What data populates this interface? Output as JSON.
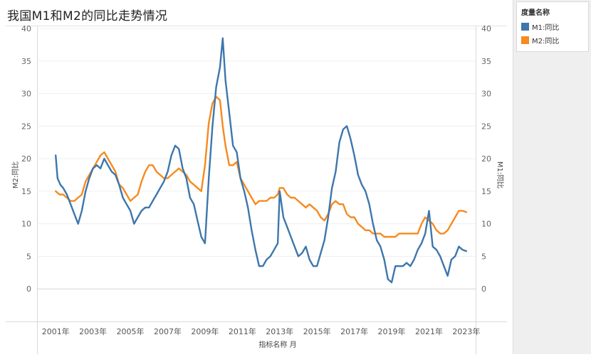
{
  "title": "我国M1和M2的同比走势情况",
  "legend": {
    "title": "度量名称",
    "items": [
      {
        "label": "M1:同比",
        "color": "#3d76ad"
      },
      {
        "label": "M2:同比",
        "color": "#f68a1e"
      }
    ]
  },
  "chart_data": {
    "type": "line",
    "title": "我国M1和M2的同比走势情况",
    "xlabel": "指标名称 月",
    "ylabel_left": "M2:同比",
    "ylabel_right": "M1:同比",
    "ylim": [
      -5,
      40
    ],
    "yticks": [
      0,
      5,
      10,
      15,
      20,
      25,
      30,
      35,
      40
    ],
    "xlim": [
      2000.0,
      2023.5
    ],
    "xticks": [
      2001,
      2003,
      2005,
      2007,
      2009,
      2011,
      2013,
      2015,
      2017,
      2019,
      2021,
      2023
    ],
    "xtick_labels": [
      "2001年",
      "2003年",
      "2005年",
      "2007年",
      "2009年",
      "2011年",
      "2013年",
      "2015年",
      "2017年",
      "2019年",
      "2021年",
      "2023年"
    ],
    "grid": true,
    "legend_position": "right",
    "series": [
      {
        "name": "M1:同比",
        "color": "#3d76ad",
        "x": [
          2001.0,
          2001.1,
          2001.25,
          2001.4,
          2001.6,
          2001.8,
          2002.0,
          2002.2,
          2002.4,
          2002.6,
          2002.8,
          2003.0,
          2003.2,
          2003.4,
          2003.6,
          2003.8,
          2004.0,
          2004.2,
          2004.4,
          2004.6,
          2004.8,
          2005.0,
          2005.2,
          2005.4,
          2005.6,
          2005.8,
          2006.0,
          2006.2,
          2006.4,
          2006.6,
          2006.8,
          2007.0,
          2007.2,
          2007.4,
          2007.6,
          2007.8,
          2008.0,
          2008.2,
          2008.4,
          2008.6,
          2008.8,
          2009.0,
          2009.2,
          2009.4,
          2009.6,
          2009.8,
          2009.95,
          2010.1,
          2010.3,
          2010.5,
          2010.7,
          2010.9,
          2011.1,
          2011.3,
          2011.5,
          2011.7,
          2011.9,
          2012.1,
          2012.3,
          2012.5,
          2012.7,
          2012.9,
          2013.0,
          2013.2,
          2013.4,
          2013.6,
          2013.8,
          2014.0,
          2014.2,
          2014.4,
          2014.6,
          2014.8,
          2015.0,
          2015.2,
          2015.4,
          2015.6,
          2015.8,
          2016.0,
          2016.2,
          2016.4,
          2016.6,
          2016.8,
          2017.0,
          2017.2,
          2017.4,
          2017.6,
          2017.8,
          2018.0,
          2018.2,
          2018.4,
          2018.6,
          2018.8,
          2019.0,
          2019.2,
          2019.4,
          2019.6,
          2019.8,
          2020.0,
          2020.2,
          2020.4,
          2020.6,
          2020.8,
          2021.0,
          2021.2,
          2021.4,
          2021.6,
          2021.8,
          2022.0,
          2022.2,
          2022.4,
          2022.6,
          2022.8,
          2023.0
        ],
        "values": [
          20.5,
          17.0,
          16.0,
          15.5,
          14.5,
          13.0,
          11.5,
          10.0,
          12.0,
          15.0,
          17.0,
          18.5,
          19.0,
          18.5,
          20.0,
          19.0,
          18.0,
          17.5,
          16.0,
          14.0,
          13.0,
          12.0,
          10.0,
          11.0,
          12.0,
          12.5,
          12.5,
          13.5,
          14.5,
          15.5,
          16.5,
          18.0,
          20.5,
          22.0,
          21.5,
          18.5,
          17.0,
          14.0,
          13.0,
          10.5,
          8.0,
          7.0,
          17.0,
          25.0,
          31.0,
          34.0,
          38.5,
          32.0,
          27.0,
          22.0,
          21.0,
          17.0,
          15.0,
          12.5,
          9.0,
          6.0,
          3.5,
          3.5,
          4.5,
          5.0,
          6.0,
          7.0,
          15.0,
          11.0,
          9.5,
          8.0,
          6.5,
          5.0,
          5.5,
          6.5,
          4.5,
          3.5,
          3.5,
          5.5,
          7.5,
          11.0,
          15.5,
          18.0,
          22.5,
          24.5,
          25.0,
          23.0,
          20.5,
          17.5,
          16.0,
          15.0,
          13.0,
          10.0,
          7.5,
          6.5,
          4.5,
          1.5,
          1.0,
          3.5,
          3.5,
          3.5,
          4.0,
          3.5,
          4.5,
          6.0,
          7.0,
          8.5,
          12.0,
          6.5,
          6.0,
          5.0,
          3.5,
          2.0,
          4.5,
          5.0,
          6.5,
          6.0,
          5.8
        ]
      },
      {
        "name": "M2:同比",
        "color": "#f68a1e",
        "x": [
          2001.0,
          2001.2,
          2001.4,
          2001.6,
          2001.8,
          2002.0,
          2002.2,
          2002.4,
          2002.6,
          2002.8,
          2003.0,
          2003.2,
          2003.4,
          2003.6,
          2003.8,
          2004.0,
          2004.2,
          2004.4,
          2004.6,
          2004.8,
          2005.0,
          2005.2,
          2005.4,
          2005.6,
          2005.8,
          2006.0,
          2006.2,
          2006.4,
          2006.6,
          2006.8,
          2007.0,
          2007.2,
          2007.4,
          2007.6,
          2007.8,
          2008.0,
          2008.2,
          2008.4,
          2008.6,
          2008.8,
          2009.0,
          2009.2,
          2009.4,
          2009.6,
          2009.8,
          2009.95,
          2010.1,
          2010.3,
          2010.5,
          2010.7,
          2010.9,
          2011.1,
          2011.3,
          2011.5,
          2011.7,
          2011.9,
          2012.1,
          2012.3,
          2012.5,
          2012.7,
          2012.9,
          2013.0,
          2013.2,
          2013.4,
          2013.6,
          2013.8,
          2014.0,
          2014.2,
          2014.4,
          2014.6,
          2014.8,
          2015.0,
          2015.2,
          2015.4,
          2015.6,
          2015.8,
          2016.0,
          2016.2,
          2016.4,
          2016.6,
          2016.8,
          2017.0,
          2017.2,
          2017.4,
          2017.6,
          2017.8,
          2018.0,
          2018.2,
          2018.4,
          2018.6,
          2018.8,
          2019.0,
          2019.2,
          2019.4,
          2019.6,
          2019.8,
          2020.0,
          2020.2,
          2020.4,
          2020.6,
          2020.8,
          2021.0,
          2021.2,
          2021.4,
          2021.6,
          2021.8,
          2022.0,
          2022.2,
          2022.4,
          2022.6,
          2022.8,
          2023.0
        ],
        "values": [
          15.0,
          14.5,
          14.5,
          14.0,
          13.5,
          13.5,
          14.0,
          14.5,
          16.5,
          17.5,
          18.5,
          19.5,
          20.5,
          21.0,
          20.0,
          19.0,
          18.0,
          16.0,
          15.5,
          14.5,
          13.5,
          14.0,
          14.5,
          16.5,
          18.0,
          19.0,
          19.0,
          18.0,
          17.5,
          17.0,
          17.0,
          17.5,
          18.0,
          18.5,
          18.0,
          17.5,
          16.5,
          16.0,
          15.5,
          15.0,
          19.0,
          25.5,
          28.5,
          29.5,
          29.0,
          25.0,
          22.0,
          19.0,
          19.0,
          19.5,
          17.0,
          16.0,
          15.0,
          14.0,
          13.0,
          13.5,
          13.5,
          13.5,
          14.0,
          14.0,
          14.5,
          15.5,
          15.5,
          14.5,
          14.0,
          14.0,
          13.5,
          13.0,
          12.5,
          13.0,
          12.5,
          12.0,
          11.0,
          10.5,
          11.5,
          13.0,
          13.5,
          13.0,
          13.0,
          11.5,
          11.0,
          11.0,
          10.0,
          9.5,
          9.0,
          9.0,
          8.5,
          8.5,
          8.5,
          8.0,
          8.0,
          8.0,
          8.0,
          8.5,
          8.5,
          8.5,
          8.5,
          8.5,
          8.5,
          10.0,
          11.0,
          10.5,
          10.0,
          9.0,
          8.5,
          8.5,
          9.0,
          10.0,
          11.0,
          12.0,
          12.0,
          11.8
        ]
      }
    ]
  }
}
